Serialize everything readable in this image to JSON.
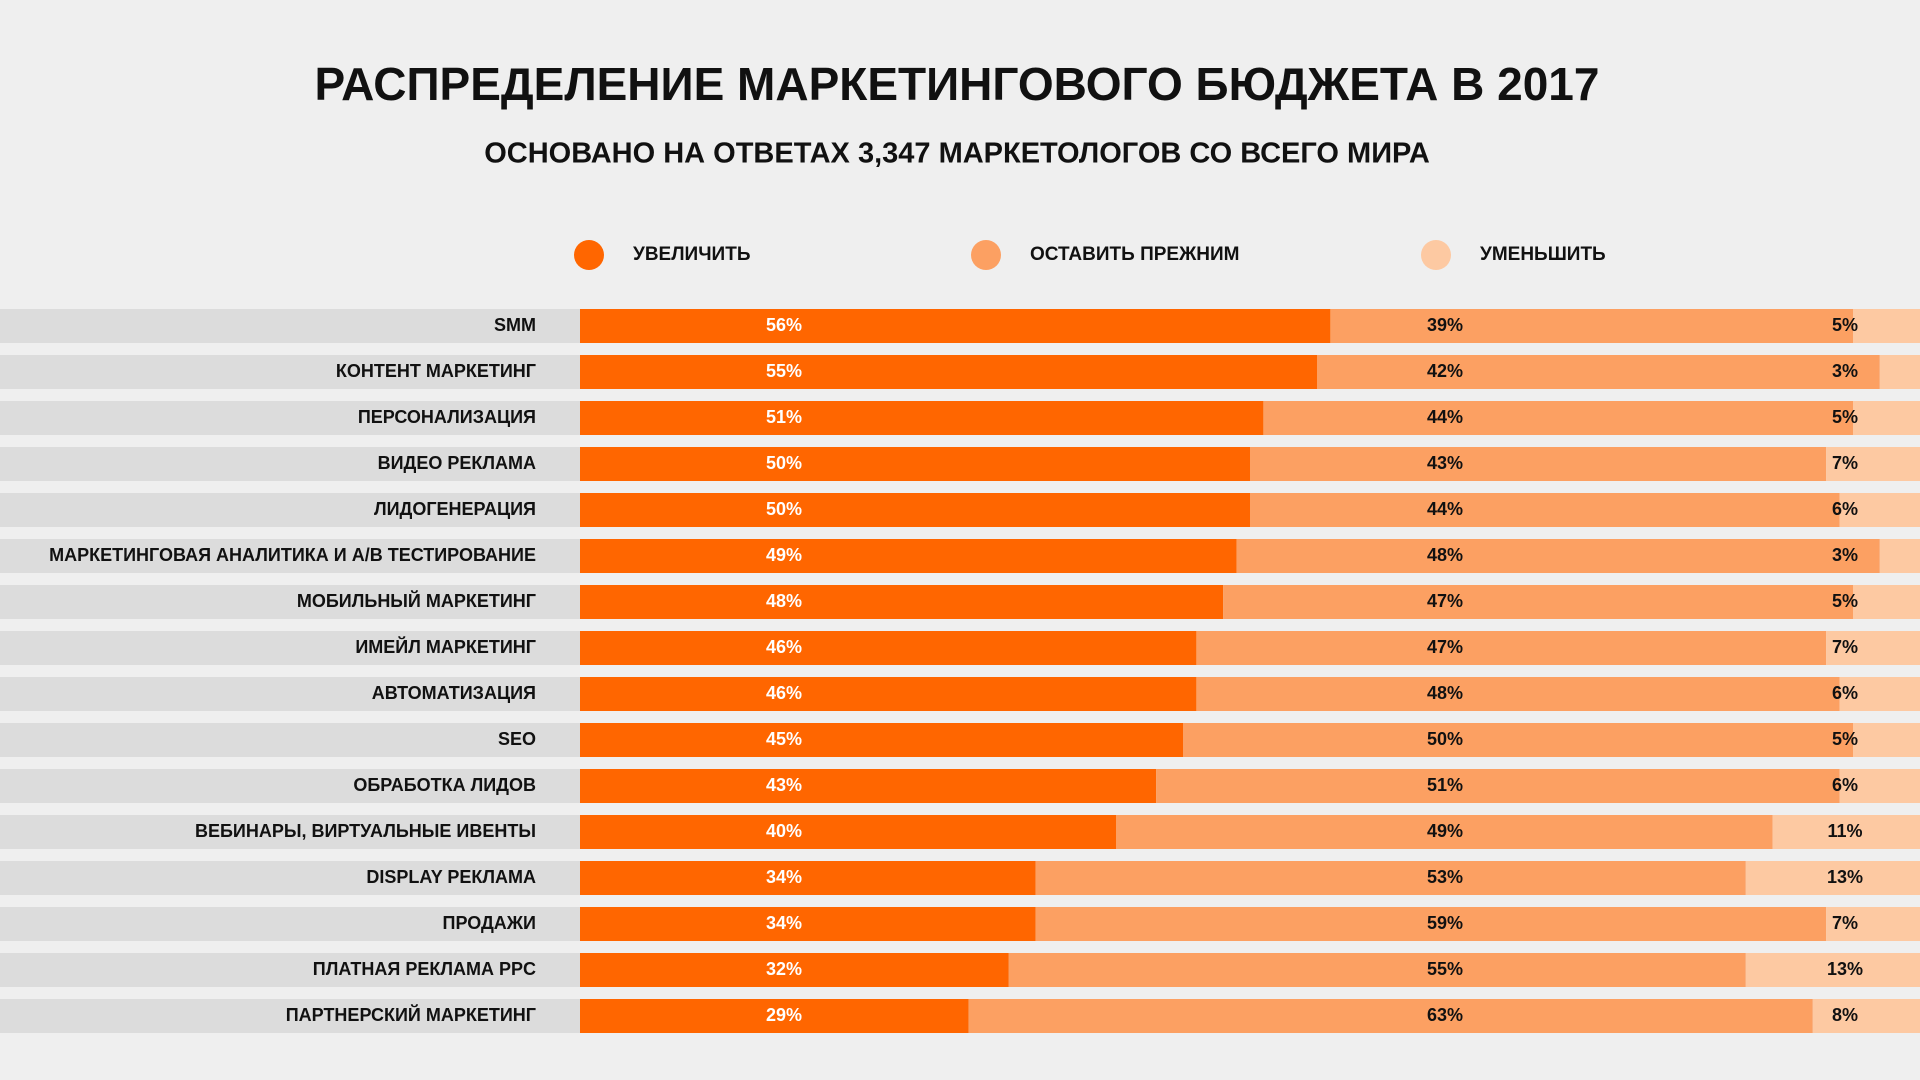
{
  "chart_data": {
    "type": "bar",
    "stacked": true,
    "orientation": "horizontal",
    "title": "РАСПРЕДЕЛЕНИЕ МАРКЕТИНГОВОГО БЮДЖЕТА В 2017",
    "subtitle": "ОСНОВАНО НА ОТВЕТАХ 3,347 МАРКЕТОЛОГОВ СО ВСЕГО МИРА",
    "xlim": [
      0,
      100
    ],
    "categories": [
      "SMM",
      "КОНТЕНТ МАРКЕТИНГ",
      "ПЕРСОНАЛИЗАЦИЯ",
      "ВИДЕО РЕКЛАМА",
      "ЛИДОГЕНЕРАЦИЯ",
      "МАРКЕТИНГОВАЯ АНАЛИТИКА И A/B ТЕСТИРОВАНИЕ",
      "МОБИЛЬНЫЙ МАРКЕТИНГ",
      "ИМЕЙЛ МАРКЕТИНГ",
      "АВТОМАТИЗАЦИЯ",
      "SEO",
      "ОБРАБОТКА ЛИДОВ",
      "ВЕБИНАРЫ, ВИРТУАЛЬНЫЕ ИВЕНТЫ",
      "DISPLAY РЕКЛАМА",
      "ПРОДАЖИ",
      "ПЛАТНАЯ РЕКЛАМА PPC",
      "ПАРТНЕРСКИЙ МАРКЕТИНГ"
    ],
    "series": [
      {
        "name": "УВЕЛИЧИТЬ",
        "color": "#ff6600",
        "values": [
          56,
          55,
          51,
          50,
          50,
          49,
          48,
          46,
          46,
          45,
          43,
          40,
          34,
          34,
          32,
          29
        ],
        "value_labels": [
          "56%",
          "55%",
          "51%",
          "50%",
          "50%",
          "49%",
          "48%",
          "46%",
          "46%",
          "45%",
          "43%",
          "40%",
          "34%",
          "34%",
          "32%",
          "29%"
        ]
      },
      {
        "name": "ОСТАВИТЬ ПРЕЖНИМ",
        "color": "#fca062",
        "values": [
          39,
          42,
          44,
          43,
          44,
          48,
          47,
          47,
          48,
          50,
          51,
          49,
          53,
          59,
          55,
          63
        ],
        "value_labels": [
          "39%",
          "42%",
          "44%",
          "43%",
          "44%",
          "48%",
          "47%",
          "47%",
          "48%",
          "50%",
          "51%",
          "49%",
          "53%",
          "59%",
          "55%",
          "63%"
        ]
      },
      {
        "name": "УМЕНЬШИТЬ",
        "color": "#fdc9a2",
        "values": [
          5,
          3,
          5,
          7,
          6,
          3,
          5,
          7,
          6,
          5,
          6,
          11,
          13,
          7,
          13,
          8
        ],
        "value_labels": [
          "5%",
          "3%",
          "5%",
          "7%",
          "6%",
          "3%",
          "5%",
          "7%",
          "6%",
          "5%",
          "6%",
          "11%",
          "13%",
          "7%",
          "13%",
          "8%"
        ]
      }
    ]
  }
}
